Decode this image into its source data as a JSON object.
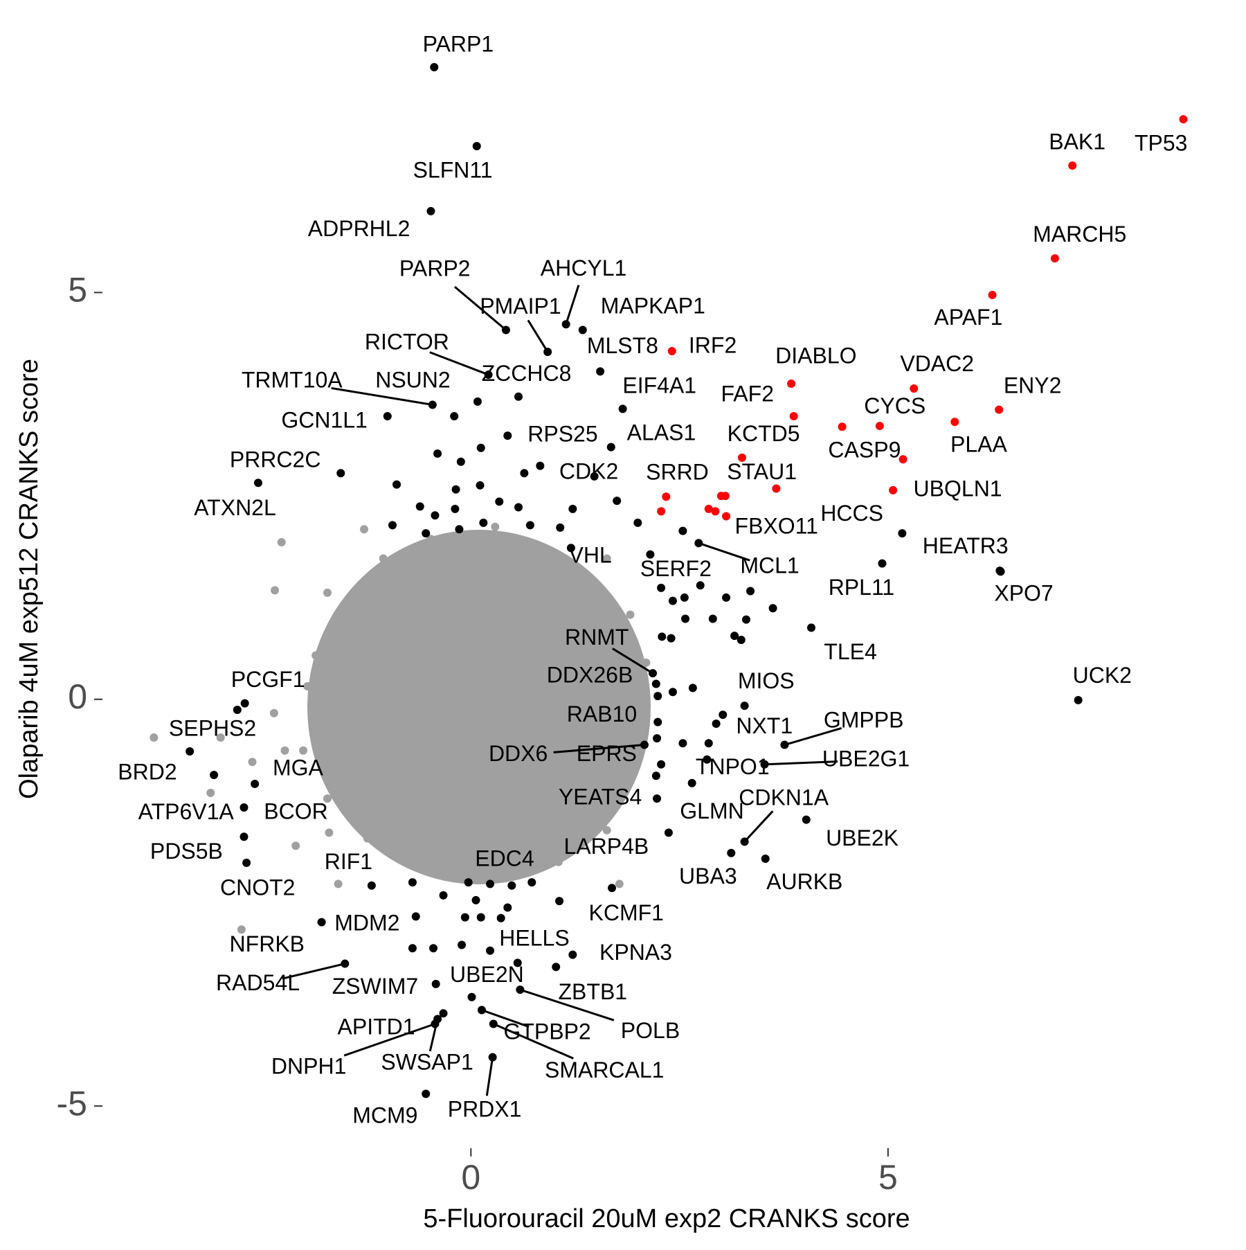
{
  "chart_data": {
    "type": "scatter",
    "x_label": "5-Fluorouracil 20uM exp2 CRANKS score",
    "y_label": "Olaparib 4uM exp512 CRANKS score",
    "xlim": [
      -4.4,
      9.1
    ],
    "ylim": [
      -5.45,
      8.4
    ],
    "xticks": [
      0,
      5
    ],
    "yticks": [
      -5,
      0,
      5
    ],
    "grid": false,
    "series": [
      {
        "color": "#a0a0a0",
        "x": [
          -2.27,
          -2.35,
          -3.8,
          -3.0,
          -3.12,
          -2.1,
          -1.59,
          1.78,
          -2.62,
          -2.23,
          -2.36,
          -1.86,
          -1.72,
          -1.28,
          -0.48,
          0.29,
          1.05,
          1.63,
          1.91,
          2.1,
          2.01,
          1.91,
          1.63,
          1.05,
          0.29,
          -0.48,
          -1.24,
          -1.72,
          -2.01,
          -1.96,
          -1.63,
          -1.05,
          -1.7
        ],
        "values": [
          1.93,
          1.34,
          -0.47,
          -0.47,
          -1.15,
          -1.8,
          -2.27,
          -2.27,
          -0.77,
          -0.63,
          -0.17,
          0.54,
          1.31,
          2.09,
          1.97,
          2.12,
          1.73,
          1.73,
          1.04,
          0.45,
          -0.24,
          -0.82,
          -1.61,
          -2.0,
          -2.2,
          -2.1,
          -1.71,
          -1.22,
          -0.63,
          0.16,
          0.94,
          1.73,
          -1.64
        ]
      },
      {
        "color": "#a0a0a0",
        "x": [
          -2.75
        ],
        "values": [
          -2.83
        ],
        "labels": [
          "NFRKB"
        ]
      },
      {
        "color": "#000000",
        "x": [
          -0.44,
          0.07,
          -0.48,
          0.42,
          1.14,
          0.92,
          1.34,
          0.21,
          1.55,
          0.57,
          -0.46,
          0.08,
          -1.0,
          1.82,
          0.44,
          1.68,
          -1.56,
          -2.55,
          1.48,
          1.2,
          2.15,
          2.73,
          5.17,
          4.93,
          6.34,
          6.35,
          4.08,
          7.28,
          2.18,
          2.22,
          3.28,
          -2.71,
          -2.8,
          -3.37,
          -3.08,
          -2.59,
          -2.72,
          -2.72,
          -2.69,
          -1.19,
          0.49,
          2.37,
          2.23,
          2.24,
          2.08,
          2.23,
          3.02,
          3.76,
          2.83,
          3.52,
          2.65,
          3.28,
          4.02,
          3.12,
          3.53,
          1.69,
          -1.79,
          0.56,
          1.22,
          -1.51,
          -0.42,
          0.01,
          1.02,
          0.59,
          -0.33,
          -0.43,
          -0.4,
          0.13,
          0.27,
          0.26,
          -0.54
        ],
        "values": [
          7.77,
          6.8,
          6.0,
          4.54,
          4.61,
          4.27,
          4.54,
          3.99,
          4.03,
          3.72,
          3.62,
          3.66,
          3.48,
          3.57,
          3.24,
          3.1,
          2.78,
          2.66,
          2.74,
          1.86,
          1.78,
          1.92,
          2.04,
          1.67,
          1.58,
          1.57,
          0.88,
          -0.01,
          0.32,
          0.19,
          -0.08,
          -0.05,
          -0.13,
          -0.64,
          -0.93,
          -1.04,
          -1.33,
          -1.69,
          -2.01,
          -2.29,
          -2.29,
          -1.64,
          -1.22,
          -0.28,
          -0.56,
          -0.48,
          -0.19,
          -0.56,
          -0.74,
          -0.8,
          -1.03,
          -1.75,
          -1.48,
          -1.89,
          -1.96,
          -2.32,
          -2.74,
          -3.24,
          -3.14,
          -3.25,
          -3.5,
          -3.66,
          -3.29,
          -3.57,
          -3.86,
          -3.99,
          -3.93,
          -3.82,
          -3.99,
          -4.4,
          -4.85
        ],
        "labels": [
          "PARP1",
          "SLFN11",
          "ADPRHL2",
          "PARP2",
          "AHCYL1",
          "PMAIP1",
          "MAPKAP1",
          "RICTOR",
          "MLST8",
          "ZCCHC8",
          "TRMT10A",
          "NSUN2",
          "GCN1L1",
          "EIF4A1",
          "RPS25",
          "ALAS1",
          "PRRC2C",
          "ATXN2L",
          "CDK2",
          "VHL",
          "SERF2",
          "MCL1",
          "HCCS",
          "RPL11",
          "HEATR3",
          "XPO7",
          "TLE4",
          "UCK2",
          "RNMT",
          "DDX26B",
          "MIOS",
          "PCGF1",
          "SEPHS2",
          "BRD2",
          "ATP6V1A",
          "MGA",
          "BCOR",
          "PDS5B",
          "CNOT2",
          "RIF1",
          "EDC4",
          "LARP4B",
          "YEATS4",
          "RAB10",
          "DDX6",
          "EPRS",
          "NXT1",
          "GMPPB",
          "TNPO1",
          "UBE2G1",
          "GLMN",
          "CDKN1A",
          "UBE2K",
          "UBA3",
          "AURKB",
          "KCMF1",
          "MDM2",
          "HELLS",
          "KPNA3",
          "RAD54L",
          "ZSWIM7",
          "UBE2N",
          "ZBTB1",
          "POLB",
          "APITD1",
          "DNPH1",
          "SWSAP1",
          "GTPBP2",
          "SMARCAL1",
          "PRDX1",
          "MCM9"
        ]
      },
      {
        "color": "#000000",
        "x": [
          -0.2,
          0.12,
          -0.4,
          -0.12,
          0.83,
          0.64,
          0.11,
          -0.18,
          -0.89,
          0.34,
          0.57,
          -0.19,
          -0.61,
          -0.43,
          1.22,
          1.75,
          0.15,
          -0.14,
          -0.94,
          -0.54,
          0.71,
          1.07,
          2.0,
          2.54,
          2.28,
          2.42,
          2.56,
          2.75,
          3.06,
          3.35,
          2.57,
          2.9,
          3.3,
          3.62,
          3.16,
          3.24,
          2.29,
          2.4,
          2.24,
          2.42,
          2.66,
          2.94,
          2.85,
          2.54,
          2.28,
          2.22,
          -0.7,
          -0.03,
          0.23,
          0.73,
          -0.33,
          0.06,
          0.44,
          1.06,
          -0.66,
          -0.07,
          0.12,
          0.36,
          -0.7,
          -0.45,
          -0.11,
          0.23
        ],
        "values": [
          3.48,
          3.09,
          3.02,
          2.92,
          2.87,
          2.78,
          2.63,
          2.58,
          2.64,
          2.43,
          2.36,
          2.34,
          2.37,
          2.26,
          2.34,
          2.44,
          2.17,
          2.09,
          2.14,
          2.04,
          2.14,
          2.11,
          2.17,
          2.07,
          1.37,
          1.21,
          1.25,
          1.4,
          1.25,
          1.33,
          0.99,
          0.99,
          0.98,
          1.12,
          0.78,
          0.73,
          0.77,
          0.75,
          0.04,
          0.09,
          0.14,
          -0.3,
          -0.54,
          -0.54,
          -0.8,
          -0.94,
          -2.25,
          -2.25,
          -2.27,
          -2.25,
          -2.41,
          -2.47,
          -2.56,
          -2.48,
          -2.67,
          -2.68,
          -2.68,
          -2.69,
          -3.06,
          -3.06,
          -3.02,
          -3.09
        ]
      },
      {
        "color": "#ff0000",
        "x": [
          8.54,
          7.21,
          7.0,
          6.25,
          3.84,
          5.31,
          6.33,
          3.87,
          4.9,
          5.8,
          4.45,
          2.41,
          3.25,
          3.66,
          2.34,
          3.05,
          5.06
        ],
        "values": [
          7.13,
          6.56,
          5.42,
          4.97,
          3.88,
          3.82,
          3.56,
          3.48,
          3.36,
          3.41,
          3.35,
          4.28,
          2.97,
          2.59,
          2.49,
          2.5,
          2.57
        ],
        "labels": [
          "TP53",
          "BAK1",
          "MARCH5",
          "APAF1",
          "DIABLO",
          "VDAC2",
          "ENY2",
          "FAF2",
          "CYCS",
          "PLAA",
          "CASP9",
          "IRF2",
          "KCTD5",
          "STAU1",
          "SRRD",
          "FBXO11",
          "UBQLN1"
        ]
      },
      {
        "color": "#ff0000",
        "x": [
          5.18,
          2.28,
          2.85,
          2.93,
          3.0,
          3.06
        ],
        "values": [
          2.95,
          2.31,
          2.34,
          2.31,
          2.5,
          2.25
        ]
      }
    ]
  }
}
